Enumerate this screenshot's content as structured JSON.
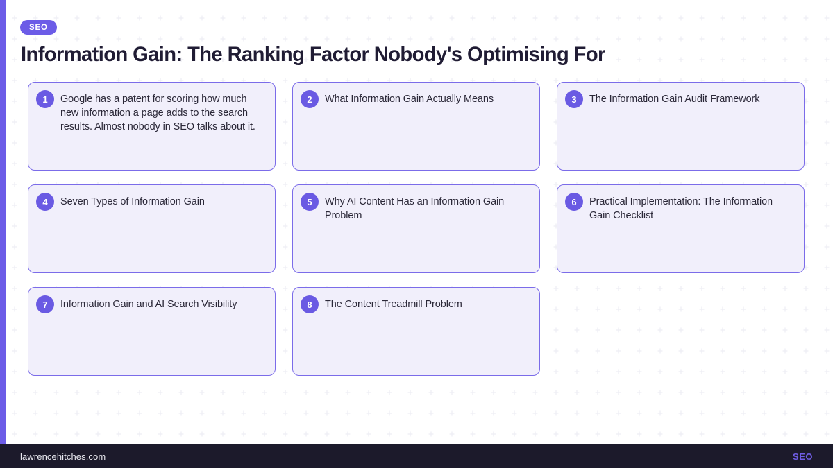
{
  "badge": {
    "label": "SEO"
  },
  "title": "Information Gain: The Ranking Factor Nobody's Optimising For",
  "cards": [
    {
      "number": "1",
      "text": "Google has a patent for scoring how much new information a page adds to the search results. Almost nobody in SEO talks about it."
    },
    {
      "number": "2",
      "text": "What Information Gain Actually Means"
    },
    {
      "number": "3",
      "text": "The Information Gain Audit Framework"
    },
    {
      "number": "4",
      "text": "Seven Types of Information Gain"
    },
    {
      "number": "5",
      "text": "Why AI Content Has an Information Gain Problem"
    },
    {
      "number": "6",
      "text": "Practical Implementation: The Information Gain Checklist"
    },
    {
      "number": "7",
      "text": "Information Gain and AI Search Visibility"
    },
    {
      "number": "8",
      "text": "The Content Treadmill Problem"
    }
  ],
  "footer": {
    "site": "lawrencehitches.com",
    "tag": "SEO"
  },
  "colors": {
    "accent": "#6c5ce7",
    "card_bg": "#f1effb",
    "card_border": "#7b6ce9",
    "title_text": "#201c34",
    "footer_bg": "#1c1a2b",
    "footer_tag": "#6f5de4",
    "pattern": "#ededf4"
  }
}
